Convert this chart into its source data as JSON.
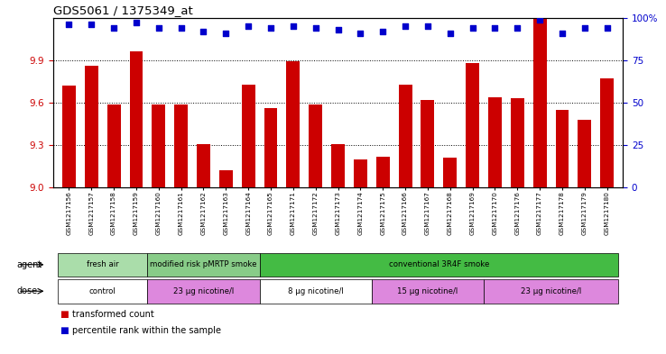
{
  "title": "GDS5061 / 1375349_at",
  "samples": [
    "GSM1217156",
    "GSM1217157",
    "GSM1217158",
    "GSM1217159",
    "GSM1217160",
    "GSM1217161",
    "GSM1217162",
    "GSM1217163",
    "GSM1217164",
    "GSM1217165",
    "GSM1217171",
    "GSM1217172",
    "GSM1217173",
    "GSM1217174",
    "GSM1217175",
    "GSM1217166",
    "GSM1217167",
    "GSM1217168",
    "GSM1217169",
    "GSM1217170",
    "GSM1217176",
    "GSM1217177",
    "GSM1217178",
    "GSM1217179",
    "GSM1217180"
  ],
  "transformed_count": [
    9.72,
    9.86,
    9.59,
    9.96,
    9.59,
    9.59,
    9.31,
    9.12,
    9.73,
    9.56,
    9.89,
    9.59,
    9.31,
    9.2,
    9.22,
    9.73,
    9.62,
    9.21,
    9.88,
    9.64,
    9.63,
    10.19,
    9.55,
    9.48,
    9.77
  ],
  "percentile_rank": [
    96,
    96,
    94,
    97,
    94,
    94,
    92,
    91,
    95,
    94,
    95,
    94,
    93,
    91,
    92,
    95,
    95,
    91,
    94,
    94,
    94,
    99,
    91,
    94,
    94
  ],
  "ylim_left": [
    9.0,
    10.2
  ],
  "ylim_right": [
    0,
    100
  ],
  "yticks_left": [
    9.0,
    9.3,
    9.6,
    9.9
  ],
  "yticks_right": [
    0,
    25,
    50,
    75,
    100
  ],
  "bar_color": "#cc0000",
  "dot_color": "#0000cc",
  "agent_groups": [
    {
      "label": "fresh air",
      "start": 0,
      "end": 4,
      "color": "#aaddaa"
    },
    {
      "label": "modified risk pMRTP smoke",
      "start": 4,
      "end": 9,
      "color": "#88cc88"
    },
    {
      "label": "conventional 3R4F smoke",
      "start": 9,
      "end": 25,
      "color": "#44bb44"
    }
  ],
  "dose_groups": [
    {
      "label": "control",
      "start": 0,
      "end": 4,
      "color": "#ffffff"
    },
    {
      "label": "23 µg nicotine/l",
      "start": 4,
      "end": 9,
      "color": "#dd88dd"
    },
    {
      "label": "8 µg nicotine/l",
      "start": 9,
      "end": 14,
      "color": "#ffffff"
    },
    {
      "label": "15 µg nicotine/l",
      "start": 14,
      "end": 19,
      "color": "#dd88dd"
    },
    {
      "label": "23 µg nicotine/l",
      "start": 19,
      "end": 25,
      "color": "#dd88dd"
    }
  ],
  "legend_items": [
    {
      "label": "transformed count",
      "color": "#cc0000"
    },
    {
      "label": "percentile rank within the sample",
      "color": "#0000cc"
    }
  ]
}
